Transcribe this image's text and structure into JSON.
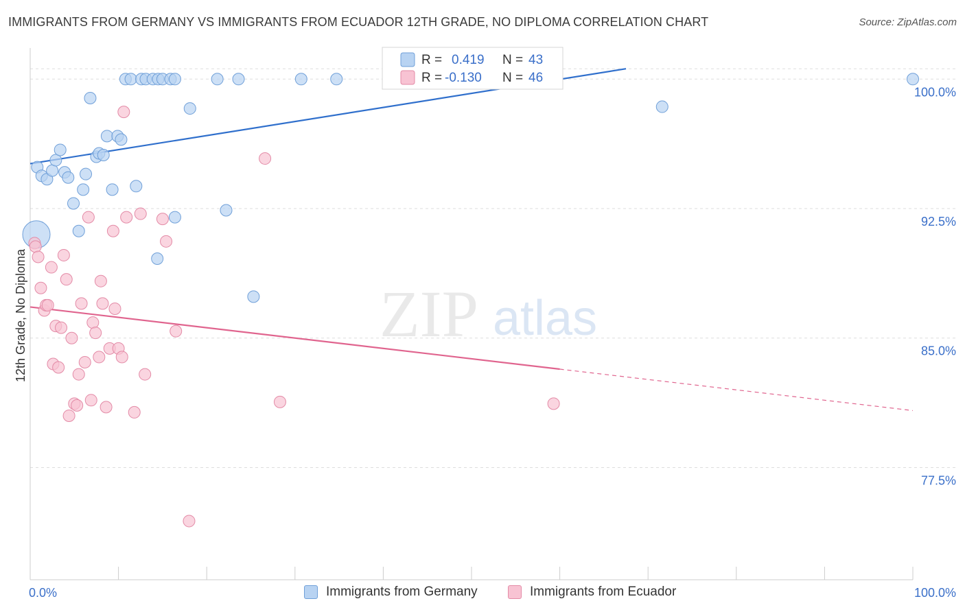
{
  "title": "IMMIGRANTS FROM GERMANY VS IMMIGRANTS FROM ECUADOR 12TH GRADE, NO DIPLOMA CORRELATION CHART",
  "source": "Source: ZipAtlas.com",
  "watermark": {
    "zip": "ZIP",
    "atlas": "atlas"
  },
  "colors": {
    "germany_fill": "#b8d3f2",
    "germany_stroke": "#6f9fd8",
    "germany_line": "#2f6fcc",
    "ecuador_fill": "#f8c3d3",
    "ecuador_stroke": "#e38aa6",
    "ecuador_line": "#e0648e",
    "value_text": "#3a6fc9",
    "grid": "#dddddd"
  },
  "legend_stats": [
    {
      "r_label": "R =",
      "r_value": "0.419",
      "n_label": "N =",
      "n_value": "43"
    },
    {
      "r_label": "R =",
      "r_value": "-0.130",
      "n_label": "N =",
      "n_value": "46"
    }
  ],
  "chart_data": {
    "type": "scatter",
    "title": "IMMIGRANTS FROM GERMANY VS IMMIGRANTS FROM ECUADOR 12TH GRADE, NO DIPLOMA CORRELATION CHART",
    "xlabel": "",
    "ylabel": "12th Grade, No Diploma",
    "xlim": [
      0,
      100
    ],
    "ylim": [
      71,
      101.8
    ],
    "x_tick_labels": [
      {
        "value": 0,
        "label": "0.0%"
      },
      {
        "value": 100,
        "label": "100.0%"
      }
    ],
    "y_ticks": [
      {
        "value": 100,
        "label": "100.0%"
      },
      {
        "value": 92.5,
        "label": "92.5%"
      },
      {
        "value": 85,
        "label": "85.0%"
      },
      {
        "value": 77.5,
        "label": "77.5%"
      }
    ],
    "grid": true,
    "legend": "top-center",
    "series": [
      {
        "name": "Immigrants from Germany",
        "r": 0.419,
        "n": 43,
        "trend": {
          "x0": 0,
          "y0": 95.1,
          "x1": 67.5,
          "y1": 100.6,
          "dashed_to": null
        },
        "points": [
          [
            0.7,
            91.0,
            1
          ],
          [
            0.8,
            94.9,
            0
          ],
          [
            1.3,
            94.4,
            0
          ],
          [
            1.9,
            94.2,
            0
          ],
          [
            2.5,
            94.7,
            0
          ],
          [
            2.9,
            95.3,
            0
          ],
          [
            3.4,
            95.9,
            0
          ],
          [
            3.9,
            94.6,
            0
          ],
          [
            4.3,
            94.3,
            0
          ],
          [
            4.9,
            92.8,
            0
          ],
          [
            5.5,
            91.2,
            0
          ],
          [
            6.0,
            93.6,
            0
          ],
          [
            6.3,
            94.5,
            0
          ],
          [
            6.8,
            98.9,
            0
          ],
          [
            7.5,
            95.5,
            0
          ],
          [
            7.8,
            95.7,
            0
          ],
          [
            8.3,
            95.6,
            0
          ],
          [
            8.7,
            96.7,
            0
          ],
          [
            9.3,
            93.6,
            0
          ],
          [
            9.9,
            96.7,
            0
          ],
          [
            10.3,
            96.5,
            0
          ],
          [
            10.8,
            100.0,
            0
          ],
          [
            11.4,
            100.0,
            0
          ],
          [
            12.0,
            93.8,
            0
          ],
          [
            12.6,
            100.0,
            0
          ],
          [
            13.1,
            100.0,
            0
          ],
          [
            13.9,
            100.0,
            0
          ],
          [
            14.5,
            100.0,
            0
          ],
          [
            15.0,
            100.0,
            0
          ],
          [
            15.9,
            100.0,
            0
          ],
          [
            16.4,
            100.0,
            0
          ],
          [
            14.4,
            89.6,
            0
          ],
          [
            16.4,
            92.0,
            0
          ],
          [
            18.1,
            98.3,
            0
          ],
          [
            21.2,
            100.0,
            0
          ],
          [
            22.2,
            92.4,
            0
          ],
          [
            23.6,
            100.0,
            0
          ],
          [
            25.3,
            87.4,
            0
          ],
          [
            30.7,
            100.0,
            0
          ],
          [
            34.7,
            100.0,
            0
          ],
          [
            47.1,
            100.0,
            0
          ],
          [
            71.6,
            98.4,
            0
          ],
          [
            100.0,
            100.0,
            0
          ]
        ]
      },
      {
        "name": "Immigrants from Ecuador",
        "r": -0.13,
        "n": 46,
        "trend": {
          "x0": 0,
          "y0": 86.8,
          "x1": 60.0,
          "y1": 83.2,
          "dashed_to": {
            "x": 100.0,
            "y": 80.8
          }
        },
        "points": [
          [
            0.5,
            90.5,
            0
          ],
          [
            0.6,
            90.3,
            0
          ],
          [
            0.9,
            89.7,
            0
          ],
          [
            1.2,
            87.9,
            0
          ],
          [
            1.6,
            86.6,
            0
          ],
          [
            1.8,
            86.9,
            0
          ],
          [
            2.0,
            86.9,
            0
          ],
          [
            2.4,
            89.1,
            0
          ],
          [
            2.6,
            83.5,
            0
          ],
          [
            2.9,
            85.7,
            0
          ],
          [
            3.2,
            83.3,
            0
          ],
          [
            3.5,
            85.6,
            0
          ],
          [
            3.8,
            89.8,
            0
          ],
          [
            4.1,
            88.4,
            0
          ],
          [
            4.4,
            80.5,
            0
          ],
          [
            4.7,
            85.0,
            0
          ],
          [
            5.0,
            81.2,
            0
          ],
          [
            5.3,
            81.1,
            0
          ],
          [
            5.5,
            82.9,
            0
          ],
          [
            5.8,
            87.0,
            0
          ],
          [
            6.2,
            83.6,
            0
          ],
          [
            6.6,
            92.0,
            0
          ],
          [
            6.9,
            81.4,
            0
          ],
          [
            7.1,
            85.9,
            0
          ],
          [
            7.4,
            85.3,
            0
          ],
          [
            7.8,
            83.9,
            0
          ],
          [
            8.0,
            88.3,
            0
          ],
          [
            8.2,
            87.0,
            0
          ],
          [
            8.6,
            81.0,
            0
          ],
          [
            9.0,
            84.4,
            0
          ],
          [
            9.4,
            91.2,
            0
          ],
          [
            9.6,
            86.7,
            0
          ],
          [
            10.0,
            84.4,
            0
          ],
          [
            10.4,
            83.9,
            0
          ],
          [
            10.6,
            98.1,
            0
          ],
          [
            10.9,
            92.0,
            0
          ],
          [
            11.8,
            80.7,
            0
          ],
          [
            12.5,
            92.2,
            0
          ],
          [
            13.0,
            82.9,
            0
          ],
          [
            15.0,
            91.9,
            0
          ],
          [
            15.4,
            90.6,
            0
          ],
          [
            16.5,
            85.4,
            0
          ],
          [
            18.0,
            74.4,
            0
          ],
          [
            26.6,
            95.4,
            0
          ],
          [
            28.3,
            81.3,
            0
          ],
          [
            59.3,
            81.2,
            0
          ]
        ]
      }
    ]
  }
}
